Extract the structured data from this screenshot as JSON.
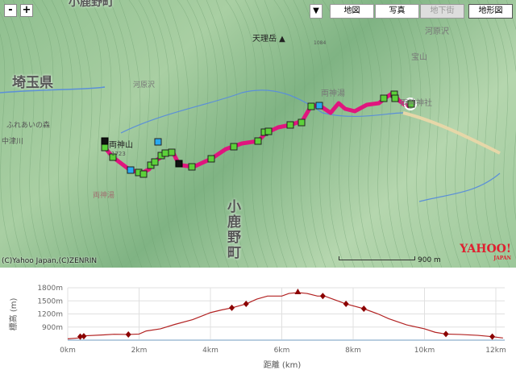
{
  "map": {
    "zoom_out": "-",
    "zoom_in": "+",
    "map_types": [
      {
        "label": "地図",
        "state": "normal"
      },
      {
        "label": "写真",
        "state": "normal"
      },
      {
        "label": "地下街",
        "state": "disabled"
      },
      {
        "label": "地形図",
        "state": "selected"
      }
    ],
    "labels": {
      "town_top": "小鹿野町",
      "peak": "天理岳",
      "pref": "埼玉県",
      "area1": "河原沢",
      "forest": "ふれあいの森",
      "river1": "中津川",
      "mountain": "両神山",
      "mountain_alt": "1723",
      "area2": "両神湯",
      "shrine": "両神神社",
      "area3": "両神湯",
      "town": "小鹿野町",
      "area4": "河原沢",
      "mt2": "宝山",
      "alt": "1084"
    },
    "copyright": "(C)Yahoo Japan,(C)ZENRIN",
    "scale_label": "900 m",
    "logo": "YAHOO! JAPAN",
    "route_color": "#e0157e"
  },
  "chart_data": {
    "type": "line",
    "xlabel": "距離 (km)",
    "ylabel": "標高 (m)",
    "x_ticks": [
      "0km",
      "2km",
      "4km",
      "6km",
      "8km",
      "10km",
      "12km"
    ],
    "y_ticks": [
      "900m",
      "1200m",
      "1500m",
      "1800m"
    ],
    "xlim": [
      0,
      12.25
    ],
    "ylim": [
      600,
      1800
    ],
    "grid": true,
    "line_color": "#b22222",
    "points": [
      [
        0,
        630
      ],
      [
        0.3,
        650
      ],
      [
        0.5,
        700
      ],
      [
        1,
        720
      ],
      [
        1.3,
        735
      ],
      [
        1.7,
        730
      ],
      [
        2,
        740
      ],
      [
        2.2,
        810
      ],
      [
        2.6,
        860
      ],
      [
        3,
        960
      ],
      [
        3.5,
        1070
      ],
      [
        4,
        1230
      ],
      [
        4.3,
        1290
      ],
      [
        4.6,
        1340
      ],
      [
        5,
        1430
      ],
      [
        5.3,
        1540
      ],
      [
        5.6,
        1610
      ],
      [
        6,
        1610
      ],
      [
        6.2,
        1670
      ],
      [
        6.45,
        1690
      ],
      [
        6.7,
        1670
      ],
      [
        7,
        1610
      ],
      [
        7.2,
        1610
      ],
      [
        7.5,
        1520
      ],
      [
        7.8,
        1430
      ],
      [
        8.3,
        1320
      ],
      [
        8.7,
        1200
      ],
      [
        9,
        1090
      ],
      [
        9.5,
        950
      ],
      [
        10,
        860
      ],
      [
        10.3,
        780
      ],
      [
        10.6,
        740
      ],
      [
        11,
        730
      ],
      [
        11.5,
        710
      ],
      [
        11.9,
        680
      ],
      [
        12.2,
        650
      ]
    ],
    "markers": [
      {
        "x": 0.35,
        "y": 680,
        "shape": "diamond"
      },
      {
        "x": 0.45,
        "y": 690,
        "shape": "diamond"
      },
      {
        "x": 1.7,
        "y": 730,
        "shape": "diamond"
      },
      {
        "x": 4.6,
        "y": 1340,
        "shape": "diamond"
      },
      {
        "x": 5.0,
        "y": 1430,
        "shape": "diamond"
      },
      {
        "x": 6.45,
        "y": 1690,
        "shape": "triangle"
      },
      {
        "x": 7.15,
        "y": 1610,
        "shape": "diamond"
      },
      {
        "x": 7.8,
        "y": 1430,
        "shape": "diamond"
      },
      {
        "x": 8.3,
        "y": 1320,
        "shape": "diamond"
      },
      {
        "x": 10.6,
        "y": 740,
        "shape": "diamond"
      },
      {
        "x": 11.9,
        "y": 680,
        "shape": "diamond"
      }
    ]
  }
}
